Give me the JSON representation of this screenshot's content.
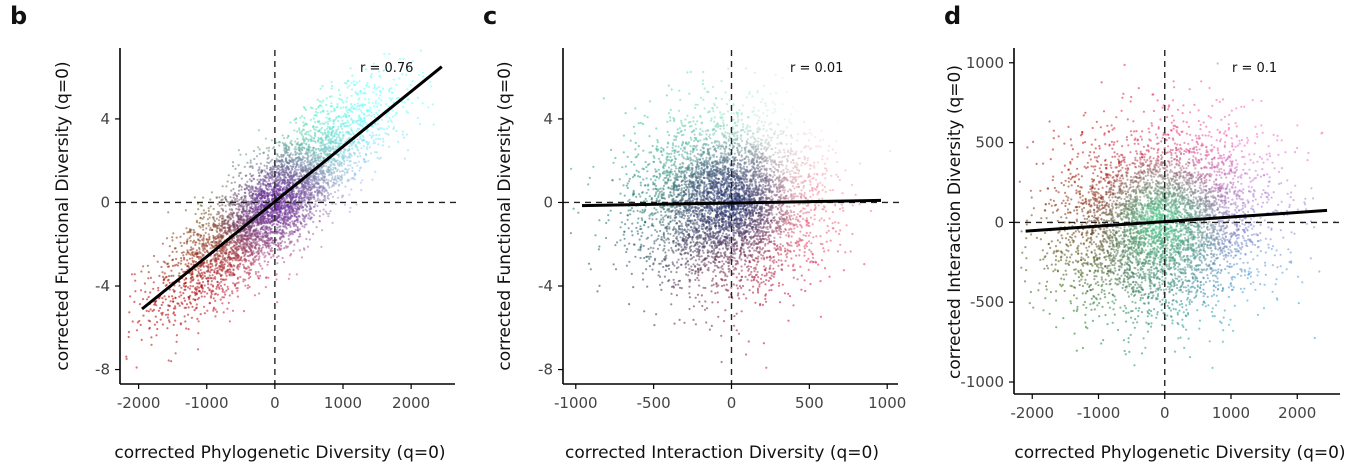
{
  "panels": [
    {
      "letter": "b",
      "r_label": "r = 0.76",
      "xlabel": "corrected Phylogenetic Diversity (q=0)",
      "ylabel": "corrected Functional Diversity (q=0)",
      "xticks": [
        -2000,
        -1000,
        0,
        1000,
        2000
      ],
      "yticks": [
        -8,
        -4,
        0,
        4
      ],
      "xtick_labels": [
        "-2000",
        "-1000",
        "0",
        "1000",
        "2000"
      ],
      "ytick_labels": [
        "-8",
        "-4",
        "0",
        "4"
      ]
    },
    {
      "letter": "c",
      "r_label": "r = 0.01",
      "xlabel": "corrected Interaction Diversity (q=0)",
      "ylabel": "corrected Functional Diversity (q=0)",
      "xticks": [
        -1000,
        -500,
        0,
        500,
        1000
      ],
      "yticks": [
        -8,
        -4,
        0,
        4
      ],
      "xtick_labels": [
        "-1000",
        "-500",
        "0",
        "500",
        "1000"
      ],
      "ytick_labels": [
        "-8",
        "-4",
        "0",
        "4"
      ]
    },
    {
      "letter": "d",
      "r_label": "r = 0.1",
      "xlabel": "corrected Phylogenetic Diversity (q=0)",
      "ylabel": "corrected Interaction Diversity (q=0)",
      "xticks": [
        -2000,
        -1000,
        0,
        1000,
        2000
      ],
      "yticks": [
        -1000,
        -500,
        0,
        500,
        1000
      ],
      "xtick_labels": [
        "-2000",
        "-1000",
        "0",
        "1000",
        "2000"
      ],
      "ytick_labels": [
        "-1000",
        "-500",
        "0",
        "500",
        "1000"
      ]
    }
  ],
  "chart_data": [
    {
      "type": "scatter",
      "xlabel": "corrected Phylogenetic Diversity (q=0)",
      "ylabel": "corrected Functional Diversity (q=0)",
      "xlim": [
        -2200,
        2600
      ],
      "ylim": [
        -8.5,
        7.3
      ],
      "grid": false,
      "reference_lines": {
        "x": 0,
        "y": 0,
        "style": "dashed"
      },
      "fit_line": {
        "x": [
          -1950,
          2450
        ],
        "y": [
          -5.1,
          6.5
        ]
      },
      "annotation": "r = 0.76",
      "cloud": {
        "x_center": 0,
        "y_center": 0,
        "slope": 0.00264,
        "x_spread": 780,
        "y_spread": 1.25,
        "n": 5000
      },
      "colors": {
        "lower_left": "#b00000",
        "upper_left": "#22bb22",
        "upper_right": "#66ffff",
        "lower_right": "#ff55dd",
        "center": "#6a2aa0"
      }
    },
    {
      "type": "scatter",
      "xlabel": "corrected Interaction Diversity (q=0)",
      "ylabel": "corrected Functional Diversity (q=0)",
      "xlim": [
        -1050,
        1050
      ],
      "ylim": [
        -8.5,
        7.3
      ],
      "grid": false,
      "reference_lines": {
        "x": 0,
        "y": 0,
        "style": "dashed"
      },
      "fit_line": {
        "x": [
          -960,
          960
        ],
        "y": [
          -0.15,
          0.1
        ]
      },
      "annotation": "r = 0.01",
      "cloud": {
        "x_center": -20,
        "y_center": 0,
        "slope": 0.0,
        "x_spread": 290,
        "y_spread": 2.0,
        "n": 5000
      },
      "colors": {
        "lower_left": "#223355",
        "upper_left": "#22cc99",
        "upper_right": "#ffffff",
        "lower_right": "#e8002a",
        "center": "#1a2a6a"
      }
    },
    {
      "type": "scatter",
      "xlabel": "corrected Phylogenetic Diversity (q=0)",
      "ylabel": "corrected Interaction Diversity (q=0)",
      "xlim": [
        -2200,
        2600
      ],
      "ylim": [
        -1050,
        1080
      ],
      "grid": false,
      "reference_lines": {
        "x": 0,
        "y": 0,
        "style": "dashed"
      },
      "fit_line": {
        "x": [
          -2100,
          2450
        ],
        "y": [
          -55,
          75
        ]
      },
      "annotation": "r = 0.1",
      "cloud": {
        "x_center": -50,
        "y_center": 0,
        "slope": 0.025,
        "x_spread": 780,
        "y_spread": 280,
        "n": 5000
      },
      "colors": {
        "lower_left": "#1a7a1a",
        "upper_left": "#cc0000",
        "upper_right": "#ff66cc",
        "lower_right": "#22aadd",
        "center": "#44cc88"
      }
    }
  ]
}
